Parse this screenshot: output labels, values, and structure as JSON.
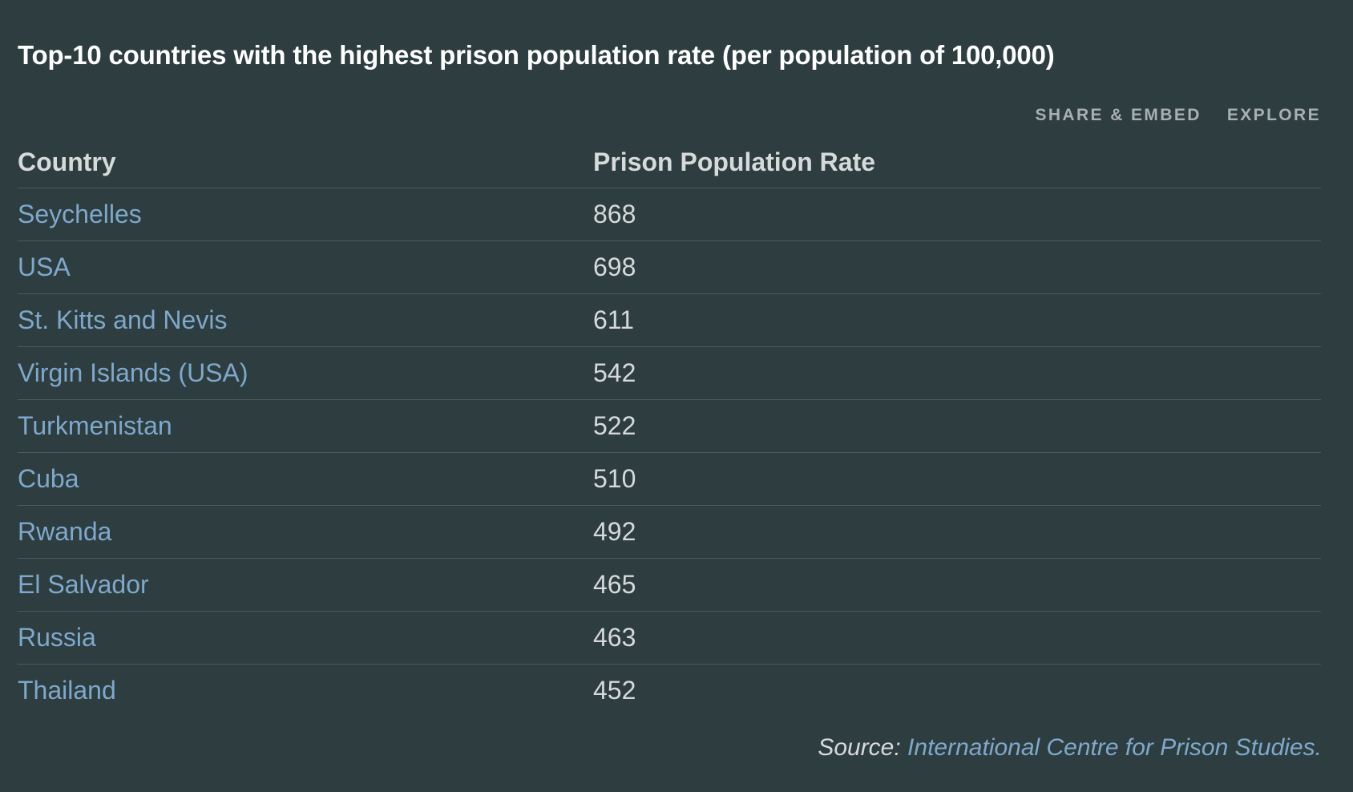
{
  "title": "Top-10 countries with the highest prison population rate (per population of 100,000)",
  "actions": {
    "share_label": "SHARE & EMBED",
    "explore_label": "EXPLORE"
  },
  "source": {
    "label": "Source:",
    "link_text": "International Centre for Prison Studies."
  },
  "colors": {
    "background": "#2d3d40",
    "link": "#7fa8cb",
    "text": "#d7dada"
  },
  "chart_data": {
    "type": "table",
    "title": "Top-10 countries with the highest prison population rate (per population of 100,000)",
    "columns": [
      "Country",
      "Prison Population Rate"
    ],
    "rows": [
      [
        "Seychelles",
        868
      ],
      [
        "USA",
        698
      ],
      [
        "St. Kitts and Nevis",
        611
      ],
      [
        "Virgin Islands (USA)",
        542
      ],
      [
        "Turkmenistan",
        522
      ],
      [
        "Cuba",
        510
      ],
      [
        "Rwanda",
        492
      ],
      [
        "El Salvador",
        465
      ],
      [
        "Russia",
        463
      ],
      [
        "Thailand",
        452
      ]
    ]
  }
}
